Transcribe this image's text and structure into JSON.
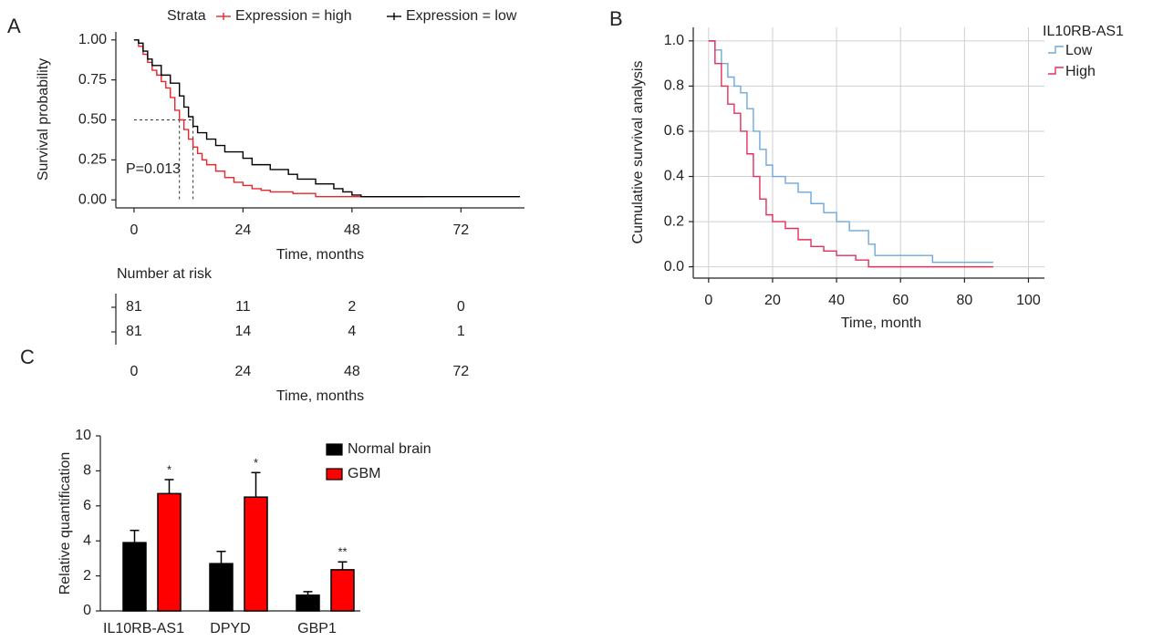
{
  "chart_data": [
    {
      "type": "step",
      "panel": "A",
      "legend_title": "Strata",
      "grid": false,
      "xlabel": "Time, months",
      "ylabel": "Survival probability",
      "annotation": "P=0.013",
      "xlim": [
        -4,
        86
      ],
      "ylim": [
        -0.05,
        1.05
      ],
      "xticks": [
        0,
        24,
        48,
        72
      ],
      "yticks": [
        {
          "value": 0,
          "label": "0.00"
        },
        {
          "value": 0.25,
          "label": "0.25"
        },
        {
          "value": 0.5,
          "label": "0.50"
        },
        {
          "value": 0.75,
          "label": "0.75"
        },
        {
          "value": 1,
          "label": "1.00"
        }
      ],
      "medians": {
        "level": 0.5,
        "x": [
          10,
          13
        ]
      },
      "series": [
        {
          "name": "Expression = high",
          "color": "#e8262a",
          "x": [
            0,
            1,
            2,
            3,
            4,
            5,
            6,
            7,
            8,
            9,
            10,
            11,
            12,
            13,
            14,
            15,
            16,
            18,
            20,
            22,
            24,
            26,
            28,
            30,
            35,
            40,
            64
          ],
          "values": [
            1,
            0.96,
            0.91,
            0.86,
            0.81,
            0.78,
            0.74,
            0.7,
            0.64,
            0.56,
            0.5,
            0.44,
            0.38,
            0.33,
            0.29,
            0.25,
            0.22,
            0.18,
            0.14,
            0.11,
            0.09,
            0.07,
            0.06,
            0.05,
            0.04,
            0.02,
            0.02
          ]
        },
        {
          "name": "Expression = low",
          "color": "#000000",
          "x": [
            0,
            1,
            2,
            3,
            4,
            6,
            8,
            10,
            11,
            12,
            13,
            14,
            16,
            18,
            20,
            24,
            26,
            30,
            34,
            36,
            40,
            44,
            46,
            48,
            50,
            85
          ],
          "values": [
            1,
            0.98,
            0.93,
            0.88,
            0.84,
            0.78,
            0.73,
            0.65,
            0.58,
            0.52,
            0.46,
            0.42,
            0.38,
            0.34,
            0.3,
            0.26,
            0.22,
            0.19,
            0.16,
            0.13,
            0.1,
            0.07,
            0.05,
            0.03,
            0.02,
            0.02
          ]
        }
      ],
      "risk_table": {
        "title": "Number at risk",
        "xlabel": "Time, months",
        "xticks": [
          0,
          24,
          48,
          72
        ],
        "rows": [
          {
            "color": "#e8262a",
            "values": [
              81,
              11,
              2,
              0
            ]
          },
          {
            "color": "#000000",
            "values": [
              81,
              14,
              4,
              1
            ]
          }
        ]
      }
    },
    {
      "type": "step",
      "panel": "B",
      "legend_title": "IL10RB-AS1",
      "grid": true,
      "xlabel": "Time, month",
      "ylabel": "Cumulative survival analysis",
      "xlim": [
        -4.8,
        105
      ],
      "ylim": [
        -0.05,
        1.06
      ],
      "xticks": [
        0,
        20,
        40,
        60,
        80,
        100
      ],
      "yticks": [
        {
          "value": 0,
          "label": "0.0"
        },
        {
          "value": 0.2,
          "label": "0.2"
        },
        {
          "value": 0.4,
          "label": "0.4"
        },
        {
          "value": 0.6,
          "label": "0.6"
        },
        {
          "value": 0.8,
          "label": "0.8"
        },
        {
          "value": 1,
          "label": "1.0"
        }
      ],
      "series": [
        {
          "name": "Low",
          "color": "#6fa8dc",
          "x": [
            0,
            2,
            4,
            6,
            8,
            10,
            12,
            14,
            16,
            18,
            20,
            24,
            28,
            32,
            36,
            40,
            44,
            50,
            52,
            70,
            89
          ],
          "values": [
            1,
            0.96,
            0.9,
            0.84,
            0.8,
            0.77,
            0.7,
            0.6,
            0.52,
            0.45,
            0.4,
            0.37,
            0.33,
            0.28,
            0.24,
            0.2,
            0.16,
            0.1,
            0.05,
            0.02,
            0.02
          ]
        },
        {
          "name": "High",
          "color": "#e0305a",
          "x": [
            0,
            2,
            4,
            6,
            8,
            10,
            12,
            14,
            16,
            18,
            20,
            24,
            28,
            32,
            36,
            40,
            46,
            50,
            89
          ],
          "values": [
            1,
            0.9,
            0.8,
            0.72,
            0.68,
            0.6,
            0.5,
            0.4,
            0.3,
            0.23,
            0.2,
            0.17,
            0.12,
            0.09,
            0.07,
            0.05,
            0.03,
            0,
            0
          ]
        }
      ]
    },
    {
      "type": "bar",
      "panel": "C",
      "grid": false,
      "ylabel": "Relative quantification",
      "categories": [
        "IL10RB-AS1",
        "DPYD",
        "GBP1"
      ],
      "ylim": [
        0,
        10
      ],
      "yticks": [
        0,
        2,
        4,
        6,
        8,
        10
      ],
      "series": [
        {
          "name": "Normal brain",
          "color": "#000000",
          "values": [
            3.9,
            2.7,
            0.9
          ],
          "errors": [
            0.7,
            0.7,
            0.2
          ]
        },
        {
          "name": "GBM",
          "color": "#ff0000",
          "values": [
            6.7,
            6.5,
            2.35
          ],
          "errors": [
            0.8,
            1.4,
            0.45
          ],
          "significance": [
            "*",
            "*",
            "**"
          ]
        }
      ]
    }
  ]
}
